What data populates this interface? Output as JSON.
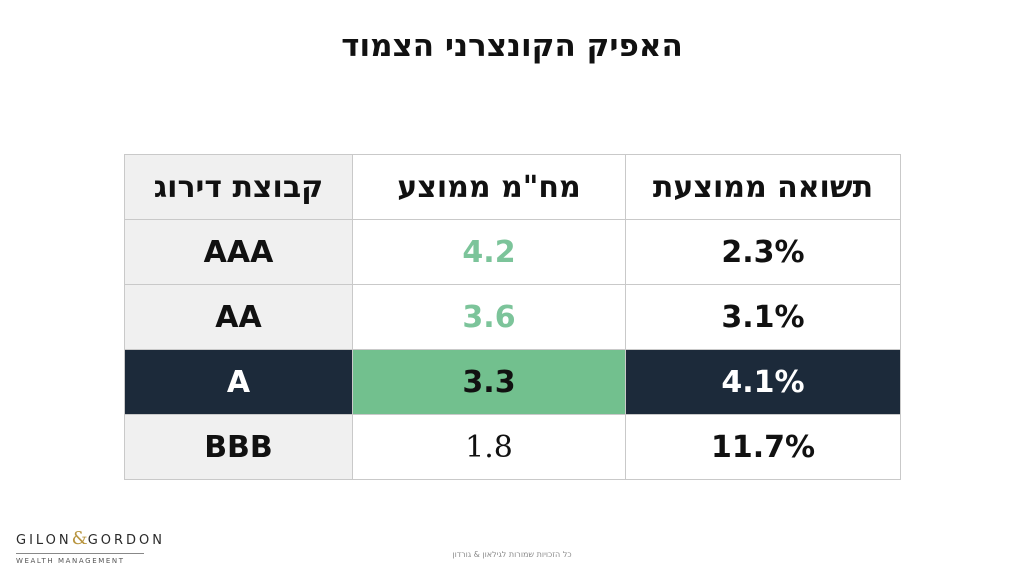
{
  "title": "האפיק הקונצרני הצמוד",
  "table": {
    "headers": {
      "rating_group": "קבוצת דירוג",
      "avg_duration": "מח\"מ ממוצע",
      "avg_yield": "תשואה ממוצעת"
    },
    "rows": [
      {
        "rating": "AAA",
        "duration": "4.2",
        "yield": "2.3%"
      },
      {
        "rating": "AA",
        "duration": "3.6",
        "yield": "3.1%"
      },
      {
        "rating": "A",
        "duration": "3.3",
        "yield": "4.1%"
      },
      {
        "rating": "BBB",
        "duration": "1.8",
        "yield": "11.7%"
      }
    ]
  },
  "colors": {
    "highlight_dark": "#1c2a3a",
    "highlight_green": "#72c08e",
    "green_text": "#7cc49a",
    "label_bg": "#f0f0f0"
  },
  "logo": {
    "left": "GILON",
    "amp": "&",
    "right": "GORDON",
    "sub": "WEALTH MANAGEMENT"
  },
  "footer": "כל הזכויות שמורות לגילאון & גורדון"
}
